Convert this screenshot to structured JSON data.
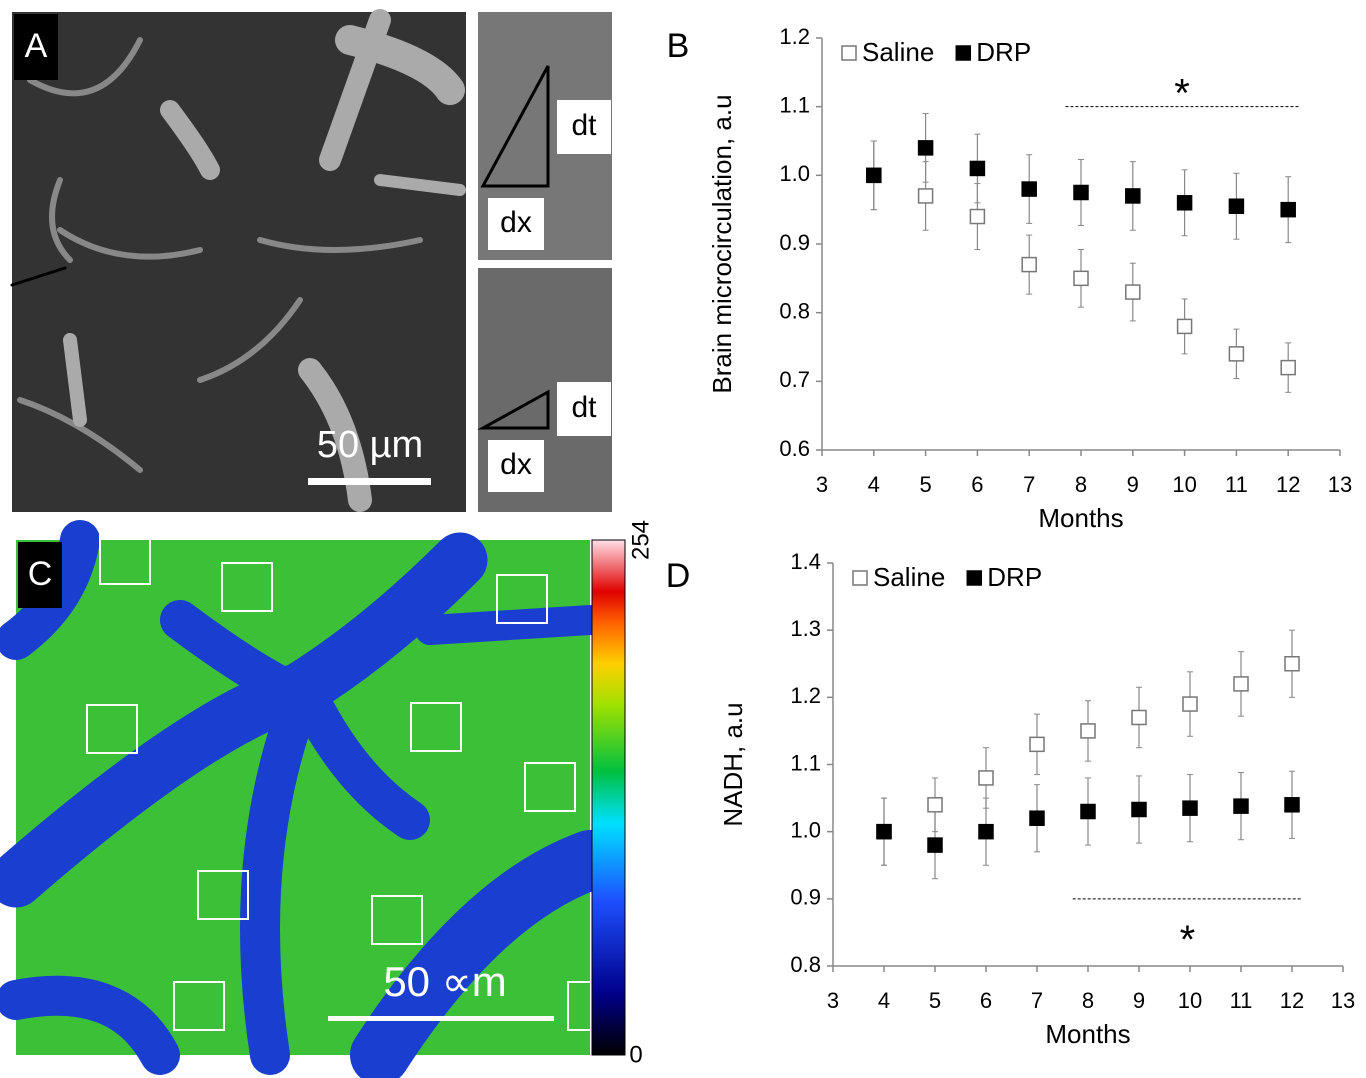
{
  "chart_data": [
    {
      "type": "scatter",
      "panel": "B",
      "xlabel": "Months",
      "ylabel": "Brain microcirculation, a.u",
      "x": [
        4,
        5,
        6,
        7,
        8,
        9,
        10,
        11,
        12
      ],
      "xlim": [
        3,
        13
      ],
      "xticks": [
        3,
        4,
        5,
        6,
        7,
        8,
        9,
        10,
        11,
        12,
        13
      ],
      "ylim": [
        0.6,
        1.2
      ],
      "yticks": [
        0.6,
        0.7,
        0.8,
        0.9,
        {
          "value": 1,
          "label": "1.0"
        },
        1.1,
        1.2
      ],
      "series": [
        {
          "name": "Saline",
          "color": "#ffffff",
          "values": [
            1.0,
            0.97,
            0.94,
            0.87,
            0.85,
            0.83,
            0.78,
            0.74,
            0.72
          ],
          "errors": [
            0.05,
            0.05,
            0.048,
            0.043,
            0.042,
            0.042,
            0.04,
            0.036,
            0.036
          ]
        },
        {
          "name": "DRP",
          "color": "#000000",
          "values": [
            1.0,
            1.04,
            1.01,
            0.98,
            0.975,
            0.97,
            0.96,
            0.955,
            0.95
          ],
          "errors": [
            0.05,
            0.05,
            0.05,
            0.05,
            0.048,
            0.05,
            0.048,
            0.048,
            0.048
          ]
        }
      ],
      "significance": {
        "label": "*",
        "x": [
          7.7,
          12.2
        ],
        "y": 1.1,
        "label_y": 1.13
      }
    },
    {
      "type": "scatter",
      "panel": "D",
      "xlabel": "Months",
      "ylabel": "NADH, a.u",
      "x": [
        4,
        5,
        6,
        7,
        8,
        9,
        10,
        11,
        12
      ],
      "xlim": [
        3,
        13
      ],
      "xticks": [
        3,
        4,
        5,
        6,
        7,
        8,
        9,
        10,
        11,
        12,
        13
      ],
      "ylim": [
        0.8,
        1.4
      ],
      "yticks": [
        0.8,
        0.9,
        {
          "value": 1,
          "label": "1.0"
        },
        1.1,
        1.2,
        1.3,
        1.4
      ],
      "series": [
        {
          "name": "Saline",
          "color": "#ffffff",
          "values": [
            1.0,
            1.04,
            1.08,
            1.13,
            1.15,
            1.17,
            1.19,
            1.22,
            1.25
          ],
          "errors": [
            0.05,
            0.04,
            0.045,
            0.045,
            0.045,
            0.045,
            0.048,
            0.048,
            0.05
          ]
        },
        {
          "name": "DRP",
          "color": "#000000",
          "values": [
            1.0,
            0.98,
            1.0,
            1.02,
            1.03,
            1.033,
            1.035,
            1.038,
            1.04
          ],
          "errors": [
            0.05,
            0.05,
            0.05,
            0.05,
            0.05,
            0.05,
            0.05,
            0.05,
            0.05
          ]
        }
      ],
      "significance": {
        "label": "*",
        "x": [
          7.7,
          12.2
        ],
        "y": 0.9,
        "label_y": 0.85
      }
    }
  ],
  "images": {
    "A": {
      "label": "A",
      "scale": "50 µm",
      "dt1": "dt",
      "dx1": "dx",
      "dt2": "dt",
      "dx2": "dx"
    },
    "C": {
      "label": "C",
      "scale": "50 ∝m",
      "cbar_max": "254",
      "cbar_min": "0"
    }
  }
}
